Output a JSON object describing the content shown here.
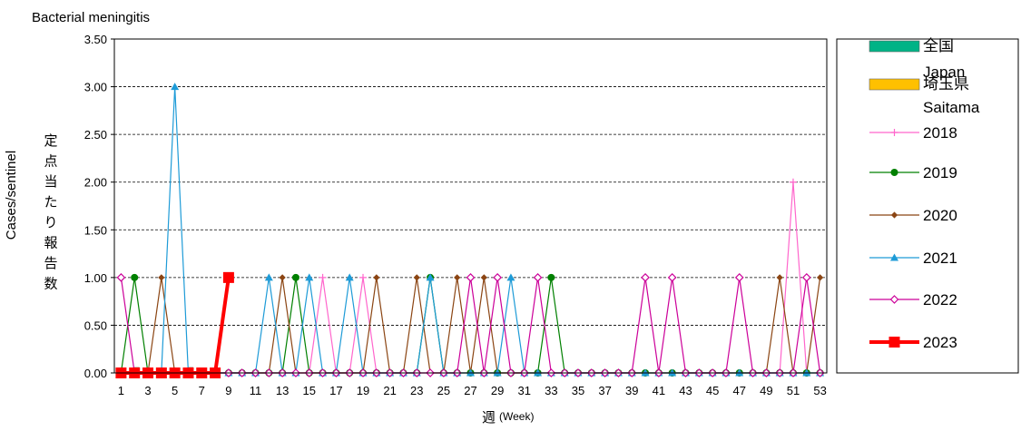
{
  "chart_data": {
    "type": "line",
    "title": "Bacterial meningitis",
    "ylabel_en": "Cases/sentinel",
    "ylabel_ja": "定点当たり報告数",
    "xlabel_ja": "週",
    "xlabel_en": "(Week)",
    "ylim": [
      0,
      3.5
    ],
    "yticks": [
      "0.00",
      "0.50",
      "1.00",
      "1.50",
      "2.00",
      "2.50",
      "3.00",
      "3.50"
    ],
    "xrange": [
      1,
      53
    ],
    "xticks": [
      1,
      3,
      5,
      7,
      9,
      11,
      13,
      15,
      17,
      19,
      21,
      23,
      25,
      27,
      29,
      31,
      33,
      35,
      37,
      39,
      41,
      43,
      45,
      47,
      49,
      51,
      53
    ],
    "grid": "horizontal",
    "legend_position": "right",
    "bars": [
      {
        "name_ja": "全国",
        "name_en": "Japan",
        "color": "#00b386",
        "values": [
          0,
          0,
          0,
          0,
          0,
          0,
          0,
          0
        ]
      },
      {
        "name_ja": "埼玉県",
        "name_en": "Saitama",
        "color": "#ffc000",
        "values": [
          0,
          0.06,
          0,
          0,
          0,
          0.06,
          0,
          0
        ]
      }
    ],
    "series": [
      {
        "name": "2018",
        "color": "#ff66cc",
        "marker": "plus",
        "values": [
          0,
          0,
          0,
          0,
          0,
          0,
          0,
          0,
          0,
          0,
          0,
          0,
          0,
          0,
          0,
          1,
          0,
          0,
          1,
          0,
          0,
          0,
          0,
          0,
          0,
          0,
          0,
          0,
          0,
          0,
          0,
          0,
          0,
          0,
          0,
          0,
          0,
          0,
          0,
          0,
          0,
          0,
          0,
          0,
          0,
          0,
          0,
          0,
          0,
          0,
          2,
          0,
          0
        ]
      },
      {
        "name": "2019",
        "color": "#008000",
        "marker": "circle",
        "values": [
          0,
          1,
          0,
          0,
          0,
          0,
          0,
          0,
          0,
          0,
          0,
          0,
          0,
          1,
          0,
          0,
          0,
          0,
          0,
          0,
          0,
          0,
          0,
          1,
          0,
          0,
          0,
          0,
          0,
          0,
          0,
          0,
          1,
          0,
          0,
          0,
          0,
          0,
          0,
          0,
          0,
          0,
          0,
          0,
          0,
          0,
          0,
          0,
          0,
          0,
          0,
          0,
          0
        ]
      },
      {
        "name": "2020",
        "color": "#8b4513",
        "marker": "diamond",
        "values": [
          0,
          0,
          0,
          1,
          0,
          0,
          0,
          0,
          0,
          0,
          0,
          0,
          1,
          0,
          0,
          0,
          0,
          0,
          0,
          1,
          0,
          0,
          1,
          0,
          0,
          1,
          0,
          1,
          0,
          0,
          0,
          0,
          0,
          0,
          0,
          0,
          0,
          0,
          0,
          0,
          0,
          0,
          0,
          0,
          0,
          0,
          0,
          0,
          0,
          1,
          0,
          0,
          1
        ]
      },
      {
        "name": "2021",
        "color": "#1e9bd7",
        "marker": "triangle",
        "values": [
          0,
          0,
          0,
          0,
          3,
          0,
          0,
          0,
          0,
          0,
          0,
          1,
          0,
          0,
          1,
          0,
          0,
          1,
          0,
          0,
          0,
          0,
          0,
          1,
          0,
          0,
          0,
          0,
          0,
          1,
          0,
          0,
          0,
          0,
          0,
          0,
          0,
          0,
          0,
          0,
          0,
          0,
          0,
          0,
          0,
          0,
          0,
          0,
          0,
          0,
          0,
          0,
          0
        ]
      },
      {
        "name": "2022",
        "color": "#cc0099",
        "marker": "open-diamond",
        "values": [
          1,
          0,
          0,
          0,
          0,
          0,
          0,
          0,
          0,
          0,
          0,
          0,
          0,
          0,
          0,
          0,
          0,
          0,
          0,
          0,
          0,
          0,
          0,
          0,
          0,
          0,
          1,
          0,
          1,
          0,
          0,
          1,
          0,
          0,
          0,
          0,
          0,
          0,
          0,
          1,
          0,
          1,
          0,
          0,
          0,
          0,
          1,
          0,
          0,
          0,
          0,
          1,
          0
        ]
      },
      {
        "name": "2023",
        "color": "#ff0000",
        "marker": "square",
        "values": [
          0,
          0,
          0,
          0,
          0,
          0,
          0,
          0,
          1
        ]
      }
    ]
  }
}
